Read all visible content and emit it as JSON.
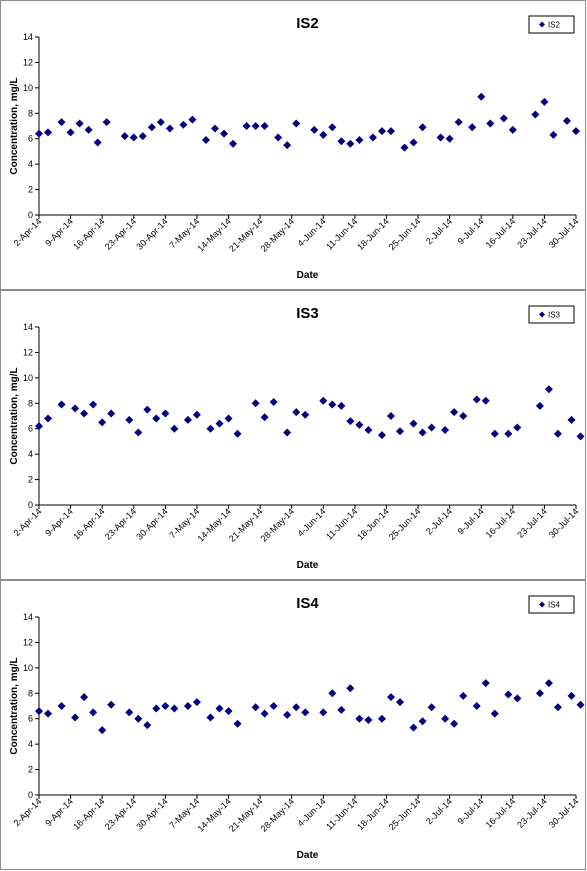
{
  "chart_data": [
    {
      "type": "scatter",
      "title": "IS2",
      "xlabel": "Date",
      "ylabel": "Concentration, mg/L",
      "ylim": [
        0,
        14
      ],
      "yticks": [
        0,
        2,
        4,
        6,
        8,
        10,
        12,
        14
      ],
      "xlim": [
        "2014-04-02",
        "2014-07-30"
      ],
      "xtick_labels": [
        "2-Apr-14",
        "9-Apr-14",
        "16-Apr-14",
        "23-Apr-14",
        "30-Apr-14",
        "7-May-14",
        "14-May-14",
        "21-May-14",
        "28-May-14",
        "4-Jun-14",
        "11-Jun-14",
        "18-Jun-14",
        "25-Jun-14",
        "2-Jul-14",
        "9-Jul-14",
        "16-Jul-14",
        "23-Jul-14",
        "30-Jul-14"
      ],
      "legend_position": "top-right",
      "grid": false,
      "marker_color": "#000080",
      "series": [
        {
          "name": "IS2",
          "points": [
            [
              "2014-04-02",
              6.4
            ],
            [
              "2014-04-04",
              6.5
            ],
            [
              "2014-04-07",
              7.3
            ],
            [
              "2014-04-09",
              6.5
            ],
            [
              "2014-04-11",
              7.2
            ],
            [
              "2014-04-13",
              6.7
            ],
            [
              "2014-04-15",
              5.7
            ],
            [
              "2014-04-17",
              7.3
            ],
            [
              "2014-04-21",
              6.2
            ],
            [
              "2014-04-23",
              6.1
            ],
            [
              "2014-04-25",
              6.2
            ],
            [
              "2014-04-27",
              6.9
            ],
            [
              "2014-04-29",
              7.3
            ],
            [
              "2014-05-01",
              6.8
            ],
            [
              "2014-05-04",
              7.1
            ],
            [
              "2014-05-06",
              7.5
            ],
            [
              "2014-05-09",
              5.9
            ],
            [
              "2014-05-11",
              6.8
            ],
            [
              "2014-05-13",
              6.4
            ],
            [
              "2014-05-15",
              5.6
            ],
            [
              "2014-05-18",
              7.0
            ],
            [
              "2014-05-20",
              7.0
            ],
            [
              "2014-05-22",
              7.0
            ],
            [
              "2014-05-25",
              6.1
            ],
            [
              "2014-05-27",
              5.5
            ],
            [
              "2014-05-29",
              7.2
            ],
            [
              "2014-06-02",
              6.7
            ],
            [
              "2014-06-04",
              6.3
            ],
            [
              "2014-06-06",
              6.9
            ],
            [
              "2014-06-08",
              5.8
            ],
            [
              "2014-06-10",
              5.6
            ],
            [
              "2014-06-12",
              5.9
            ],
            [
              "2014-06-15",
              6.1
            ],
            [
              "2014-06-17",
              6.6
            ],
            [
              "2014-06-19",
              6.6
            ],
            [
              "2014-06-22",
              5.3
            ],
            [
              "2014-06-24",
              5.7
            ],
            [
              "2014-06-26",
              6.9
            ],
            [
              "2014-06-30",
              6.1
            ],
            [
              "2014-07-02",
              6.0
            ],
            [
              "2014-07-04",
              7.3
            ],
            [
              "2014-07-07",
              6.9
            ],
            [
              "2014-07-09",
              9.3
            ],
            [
              "2014-07-11",
              7.2
            ],
            [
              "2014-07-14",
              7.6
            ],
            [
              "2014-07-16",
              6.7
            ],
            [
              "2014-07-21",
              7.9
            ],
            [
              "2014-07-23",
              8.9
            ],
            [
              "2014-07-25",
              6.3
            ],
            [
              "2014-07-28",
              7.4
            ],
            [
              "2014-07-30",
              6.6
            ]
          ]
        }
      ]
    },
    {
      "type": "scatter",
      "title": "IS3",
      "xlabel": "Date",
      "ylabel": "Concentration, mg/L",
      "ylim": [
        0,
        14
      ],
      "yticks": [
        0,
        2,
        4,
        6,
        8,
        10,
        12,
        14
      ],
      "xlim": [
        "2014-04-02",
        "2014-07-30"
      ],
      "xtick_labels": [
        "2-Apr-14",
        "9-Apr-14",
        "16-Apr-14",
        "23-Apr-14",
        "30-Apr-14",
        "7-May-14",
        "14-May-14",
        "21-May-14",
        "28-May-14",
        "4-Jun-14",
        "11-Jun-14",
        "18-Jun-14",
        "25-Jun-14",
        "2-Jul-14",
        "9-Jul-14",
        "16-Jul-14",
        "23-Jul-14",
        "30-Jul-14"
      ],
      "legend_position": "top-right",
      "grid": false,
      "marker_color": "#000080",
      "series": [
        {
          "name": "IS3",
          "points": [
            [
              "2014-04-02",
              6.2
            ],
            [
              "2014-04-04",
              6.8
            ],
            [
              "2014-04-07",
              7.9
            ],
            [
              "2014-04-10",
              7.6
            ],
            [
              "2014-04-12",
              7.2
            ],
            [
              "2014-04-14",
              7.9
            ],
            [
              "2014-04-16",
              6.5
            ],
            [
              "2014-04-18",
              7.2
            ],
            [
              "2014-04-22",
              6.7
            ],
            [
              "2014-04-24",
              5.7
            ],
            [
              "2014-04-26",
              7.5
            ],
            [
              "2014-04-28",
              6.8
            ],
            [
              "2014-04-30",
              7.2
            ],
            [
              "2014-05-02",
              6.0
            ],
            [
              "2014-05-05",
              6.7
            ],
            [
              "2014-05-07",
              7.1
            ],
            [
              "2014-05-10",
              6.0
            ],
            [
              "2014-05-12",
              6.4
            ],
            [
              "2014-05-14",
              6.8
            ],
            [
              "2014-05-16",
              5.6
            ],
            [
              "2014-05-20",
              8.0
            ],
            [
              "2014-05-22",
              6.9
            ],
            [
              "2014-05-24",
              8.1
            ],
            [
              "2014-05-27",
              5.7
            ],
            [
              "2014-05-29",
              7.3
            ],
            [
              "2014-05-31",
              7.1
            ],
            [
              "2014-06-04",
              8.2
            ],
            [
              "2014-06-06",
              7.9
            ],
            [
              "2014-06-08",
              7.8
            ],
            [
              "2014-06-10",
              6.6
            ],
            [
              "2014-06-12",
              6.3
            ],
            [
              "2014-06-14",
              5.9
            ],
            [
              "2014-06-17",
              5.5
            ],
            [
              "2014-06-19",
              7.0
            ],
            [
              "2014-06-21",
              5.8
            ],
            [
              "2014-06-24",
              6.4
            ],
            [
              "2014-06-26",
              5.7
            ],
            [
              "2014-06-28",
              6.1
            ],
            [
              "2014-07-01",
              5.9
            ],
            [
              "2014-07-03",
              7.3
            ],
            [
              "2014-07-05",
              7.0
            ],
            [
              "2014-07-08",
              8.3
            ],
            [
              "2014-07-10",
              8.2
            ],
            [
              "2014-07-12",
              5.6
            ],
            [
              "2014-07-15",
              5.6
            ],
            [
              "2014-07-17",
              6.1
            ],
            [
              "2014-07-22",
              7.8
            ],
            [
              "2014-07-24",
              9.1
            ],
            [
              "2014-07-26",
              5.6
            ],
            [
              "2014-07-29",
              6.7
            ],
            [
              "2014-07-31",
              5.4
            ]
          ]
        }
      ]
    },
    {
      "type": "scatter",
      "title": "IS4",
      "xlabel": "Date",
      "ylabel": "Concentration, mg/L",
      "ylim": [
        0,
        14
      ],
      "yticks": [
        0,
        2,
        4,
        6,
        8,
        10,
        12,
        14
      ],
      "xlim": [
        "2014-04-02",
        "2014-07-30"
      ],
      "xtick_labels": [
        "2-Apr-14",
        "9-Apr-14",
        "16-Apr-14",
        "23-Apr-14",
        "30-Apr-14",
        "7-May-14",
        "14-May-14",
        "21-May-14",
        "28-May-14",
        "4-Jun-14",
        "11-Jun-14",
        "18-Jun-14",
        "25-Jun-14",
        "2-Jul-14",
        "9-Jul-14",
        "16-Jul-14",
        "23-Jul-14",
        "30-Jul-14"
      ],
      "legend_position": "top-right",
      "grid": false,
      "marker_color": "#000080",
      "series": [
        {
          "name": "IS4",
          "points": [
            [
              "2014-04-02",
              6.6
            ],
            [
              "2014-04-04",
              6.4
            ],
            [
              "2014-04-07",
              7.0
            ],
            [
              "2014-04-10",
              6.1
            ],
            [
              "2014-04-12",
              7.7
            ],
            [
              "2014-04-14",
              6.5
            ],
            [
              "2014-04-16",
              5.1
            ],
            [
              "2014-04-18",
              7.1
            ],
            [
              "2014-04-22",
              6.5
            ],
            [
              "2014-04-24",
              6.0
            ],
            [
              "2014-04-26",
              5.5
            ],
            [
              "2014-04-28",
              6.8
            ],
            [
              "2014-04-30",
              7.0
            ],
            [
              "2014-05-02",
              6.8
            ],
            [
              "2014-05-05",
              7.0
            ],
            [
              "2014-05-07",
              7.3
            ],
            [
              "2014-05-10",
              6.1
            ],
            [
              "2014-05-12",
              6.8
            ],
            [
              "2014-05-14",
              6.6
            ],
            [
              "2014-05-16",
              5.6
            ],
            [
              "2014-05-20",
              6.9
            ],
            [
              "2014-05-22",
              6.4
            ],
            [
              "2014-05-24",
              7.0
            ],
            [
              "2014-05-27",
              6.3
            ],
            [
              "2014-05-29",
              6.9
            ],
            [
              "2014-05-31",
              6.5
            ],
            [
              "2014-06-04",
              6.5
            ],
            [
              "2014-06-06",
              8.0
            ],
            [
              "2014-06-08",
              6.7
            ],
            [
              "2014-06-10",
              8.4
            ],
            [
              "2014-06-12",
              6.0
            ],
            [
              "2014-06-14",
              5.9
            ],
            [
              "2014-06-17",
              6.0
            ],
            [
              "2014-06-19",
              7.7
            ],
            [
              "2014-06-21",
              7.3
            ],
            [
              "2014-06-24",
              5.3
            ],
            [
              "2014-06-26",
              5.8
            ],
            [
              "2014-06-28",
              6.9
            ],
            [
              "2014-07-01",
              6.0
            ],
            [
              "2014-07-03",
              5.6
            ],
            [
              "2014-07-05",
              7.8
            ],
            [
              "2014-07-08",
              7.0
            ],
            [
              "2014-07-10",
              8.8
            ],
            [
              "2014-07-12",
              6.4
            ],
            [
              "2014-07-15",
              7.9
            ],
            [
              "2014-07-17",
              7.6
            ],
            [
              "2014-07-22",
              8.0
            ],
            [
              "2014-07-24",
              8.8
            ],
            [
              "2014-07-26",
              6.9
            ],
            [
              "2014-07-29",
              7.8
            ],
            [
              "2014-07-31",
              7.1
            ]
          ]
        }
      ]
    }
  ]
}
